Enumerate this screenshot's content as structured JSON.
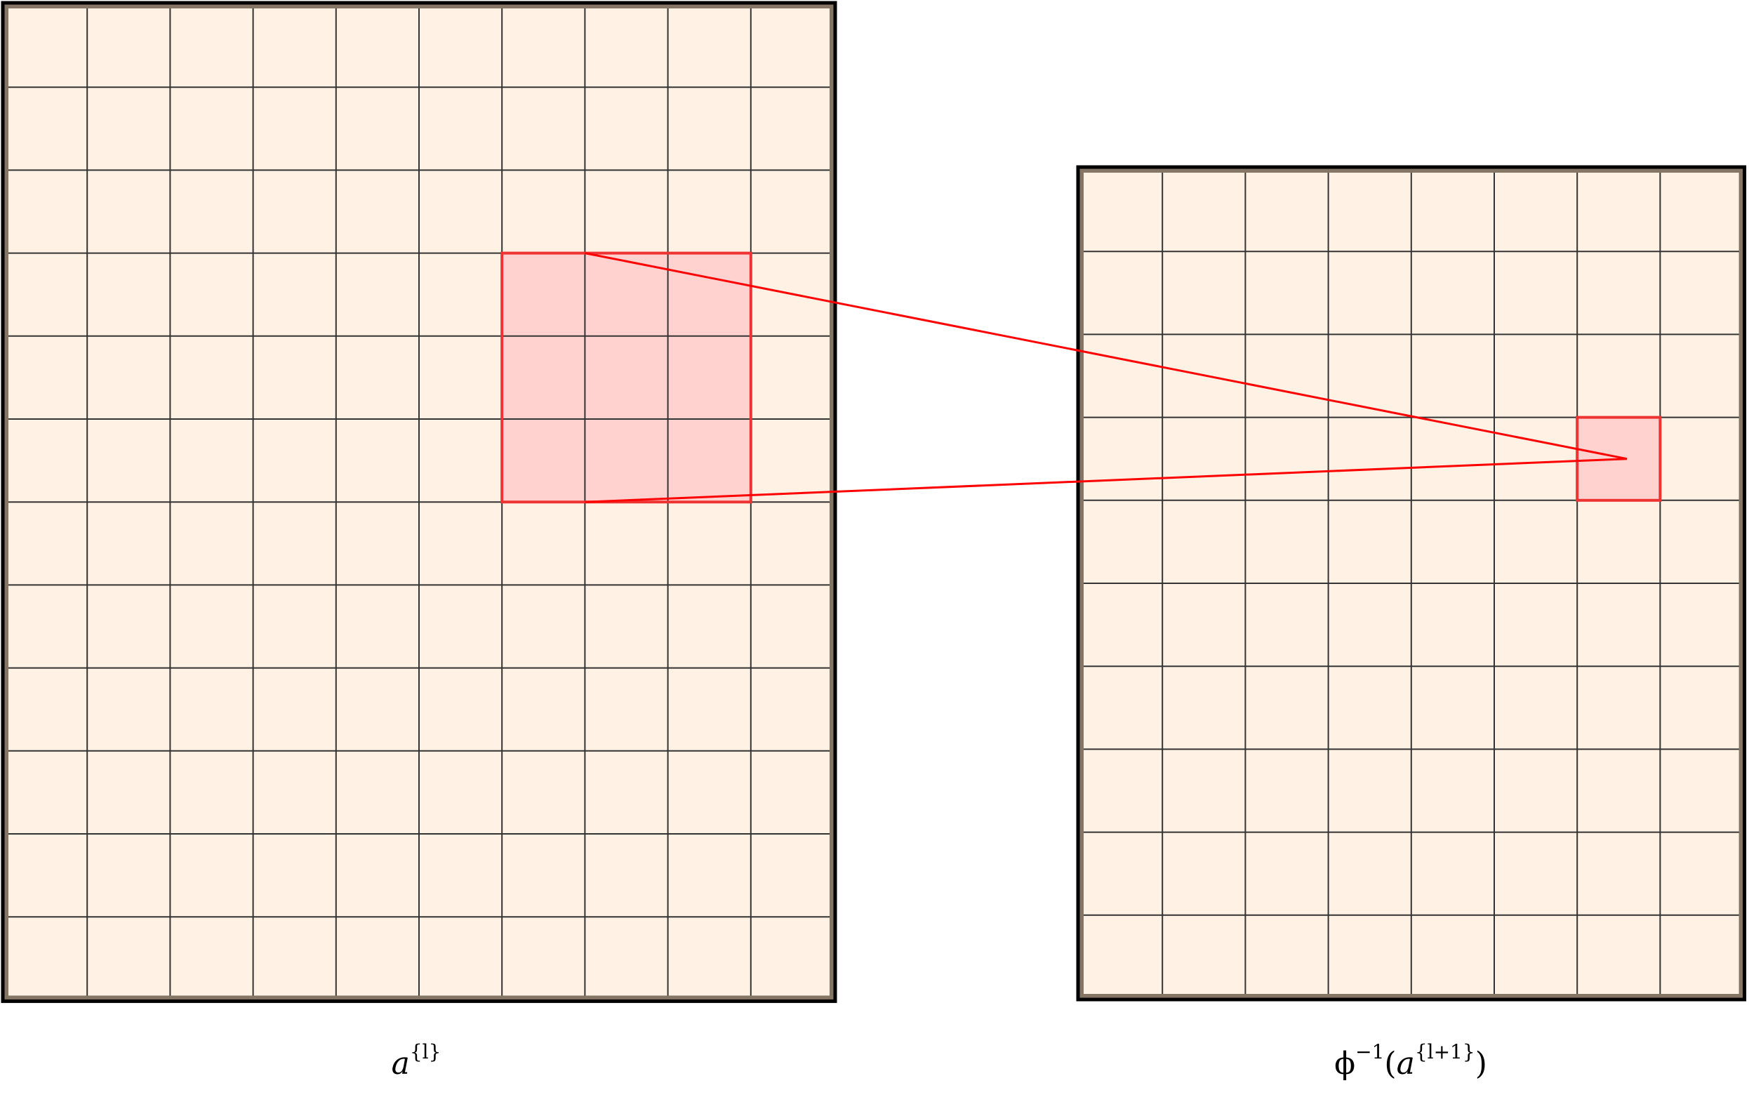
{
  "left_grid": {
    "columns": 10,
    "rows": 12,
    "label_base": "a",
    "label_sup": "{l}",
    "highlight": {
      "col": 6,
      "row": 3,
      "width": 3,
      "height": 3
    }
  },
  "right_grid": {
    "columns": 8,
    "rows": 10,
    "label_prefix": "ϕ",
    "label_prefix_sup": "−1",
    "label_open": "(",
    "label_base": "a",
    "label_sup": "{l+1}",
    "label_close": ")",
    "highlight": {
      "col": 6,
      "row": 3,
      "width": 1,
      "height": 1
    }
  },
  "colors": {
    "cell_fill": "#fff1e3",
    "grid_line": "#333333",
    "border": "#000000",
    "inner_border": "#857565",
    "highlight_fill": "#ffd2cf",
    "highlight_stroke": "#ee3333",
    "connector": "#ff0000"
  }
}
